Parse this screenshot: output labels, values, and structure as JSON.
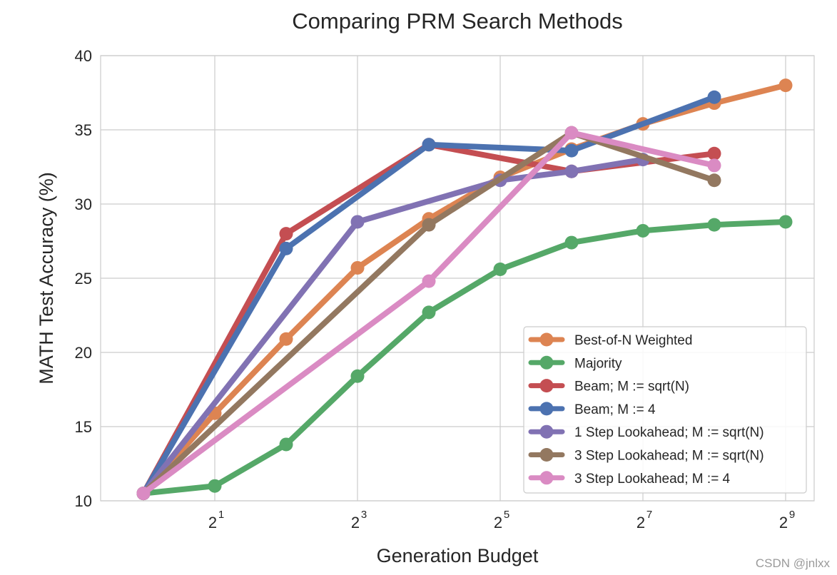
{
  "chart_data": {
    "type": "line",
    "title": "Comparing PRM Search Methods",
    "xlabel": "Generation Budget",
    "ylabel": "MATH Test Accuracy (%)",
    "x_scale": "log2",
    "xlim_log2": [
      -0.6,
      9.4
    ],
    "ylim": [
      10,
      40
    ],
    "x_ticks": [
      {
        "base": "2",
        "exp": "1",
        "log2": 1
      },
      {
        "base": "2",
        "exp": "3",
        "log2": 3
      },
      {
        "base": "2",
        "exp": "5",
        "log2": 5
      },
      {
        "base": "2",
        "exp": "7",
        "log2": 7
      },
      {
        "base": "2",
        "exp": "9",
        "log2": 9
      }
    ],
    "y_ticks": [
      "10",
      "15",
      "20",
      "25",
      "30",
      "35",
      "40"
    ],
    "grid": true,
    "legend_position": "lower-right",
    "series": [
      {
        "name": "Best-of-N Weighted",
        "color": "#dd8452",
        "x": [
          1,
          2,
          4,
          8,
          16,
          32,
          64,
          128,
          256,
          512
        ],
        "values": [
          10.5,
          15.9,
          20.9,
          25.7,
          29.0,
          31.8,
          33.7,
          35.4,
          36.8,
          38.0
        ]
      },
      {
        "name": "Majority",
        "color": "#55a868",
        "x": [
          1,
          2,
          4,
          8,
          16,
          32,
          64,
          128,
          256,
          512
        ],
        "values": [
          10.5,
          11.0,
          13.8,
          18.4,
          22.7,
          25.6,
          27.4,
          28.2,
          28.6,
          28.8
        ]
      },
      {
        "name": "Beam; M := sqrt(N)",
        "color": "#c44e52",
        "x": [
          1,
          4,
          16,
          64,
          256
        ],
        "values": [
          10.5,
          28.0,
          34.0,
          32.2,
          33.4
        ]
      },
      {
        "name": "Beam; M := 4",
        "color": "#4c72b0",
        "x": [
          1,
          4,
          16,
          64,
          256
        ],
        "values": [
          10.5,
          27.0,
          34.0,
          33.6,
          37.2
        ]
      },
      {
        "name": "1 Step Lookahead; M := sqrt(N)",
        "color": "#8172b3",
        "x": [
          1,
          8,
          32,
          64,
          128
        ],
        "values": [
          10.5,
          28.8,
          31.6,
          32.2,
          33.0
        ]
      },
      {
        "name": "3 Step Lookahead; M := sqrt(N)",
        "color": "#937860",
        "x": [
          1,
          16,
          64,
          256
        ],
        "values": [
          10.5,
          28.6,
          34.8,
          31.6
        ]
      },
      {
        "name": "3 Step Lookahead; M := 4",
        "color": "#da8bc3",
        "x": [
          1,
          16,
          64,
          256
        ],
        "values": [
          10.5,
          24.8,
          34.8,
          32.6
        ]
      }
    ]
  },
  "watermark": "CSDN @jnlxx"
}
